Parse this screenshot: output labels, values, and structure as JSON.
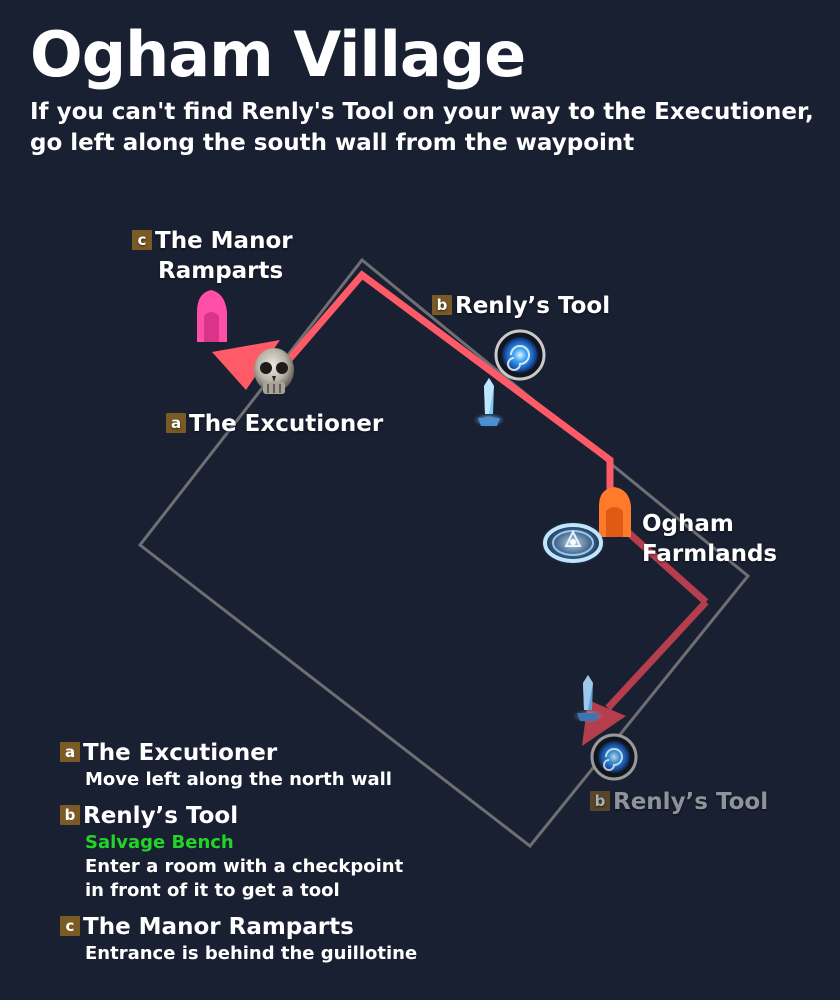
{
  "header": {
    "title": "Ogham Village",
    "subtitle_line1": "If you can't find Renly's Tool on your way to the Executioner,",
    "subtitle_line2": "go left along the south wall from the waypoint"
  },
  "map_labels": {
    "manor": {
      "badge": "c",
      "line1": "The Manor",
      "line2": "Ramparts"
    },
    "tool_top": {
      "badge": "b",
      "text": "Renly’s Tool"
    },
    "executioner": {
      "badge": "a",
      "text": "The Excutioner"
    },
    "farmlands": {
      "line1": "Ogham",
      "line2": "Farmlands"
    },
    "tool_bottom": {
      "badge": "b",
      "text": "Renly’s Tool"
    }
  },
  "legend": {
    "a": {
      "badge": "a",
      "title": "The Excutioner",
      "desc": "Move left along the north wall"
    },
    "b": {
      "badge": "b",
      "title": "Renly’s Tool",
      "note": "Salvage Bench",
      "desc1": "Enter a room with a checkpoint",
      "desc2": "in front of it to get a tool"
    },
    "c": {
      "badge": "c",
      "title": "The Manor Ramparts",
      "desc": "Entrance is behind the guillotine"
    }
  },
  "colors": {
    "background": "#192031",
    "map_outline": "#6f6f73",
    "route": "#ff5a68",
    "route_faded": "#b53e4e",
    "manor_gate": "#ff4fa8",
    "farmlands_gate": "#ff7a2a",
    "badge": "#7a5a25",
    "salvage_note": "#23d428"
  },
  "icons": {
    "tool_marker": "swirl-portal-icon",
    "executioner": "skull-icon",
    "waypoint": "waypoint-sigil-icon",
    "checkpoint": "crystal-obelisk-icon",
    "exit": "gate-icon"
  }
}
